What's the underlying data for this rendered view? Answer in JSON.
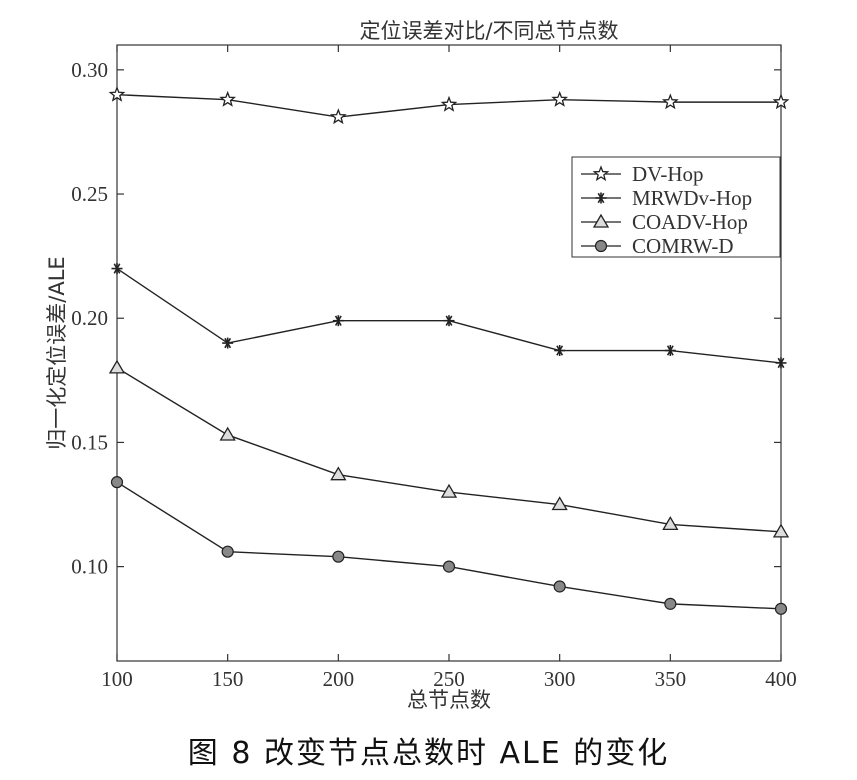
{
  "caption": "图 8   改变节点总数时 ALE 的变化",
  "chart_data": {
    "type": "line",
    "title": "定位误差对比/不同总节点数",
    "xlabel": "总节点数",
    "ylabel": "归一化定位误差/ALE",
    "x": [
      100,
      150,
      200,
      250,
      300,
      350,
      400
    ],
    "xlim": [
      100,
      400
    ],
    "ylim": [
      0.062,
      0.31
    ],
    "xticks": [
      "100",
      "150",
      "200",
      "250",
      "300",
      "350",
      "400"
    ],
    "xtick_values": [
      100,
      150,
      200,
      250,
      300,
      350,
      400
    ],
    "yticks": [
      "0.10",
      "0.15",
      "0.20",
      "0.25",
      "0.30"
    ],
    "ytick_values": [
      0.1,
      0.15,
      0.2,
      0.25,
      0.3
    ],
    "grid": false,
    "legend_position": "top-right",
    "series": [
      {
        "name": "DV-Hop",
        "marker": "star",
        "values": [
          0.29,
          0.288,
          0.281,
          0.286,
          0.288,
          0.287,
          0.287
        ]
      },
      {
        "name": "MRWDv-Hop",
        "marker": "asterisk",
        "values": [
          0.22,
          0.19,
          0.199,
          0.199,
          0.187,
          0.187,
          0.182
        ]
      },
      {
        "name": "COADV-Hop",
        "marker": "triangle",
        "values": [
          0.18,
          0.153,
          0.137,
          0.13,
          0.125,
          0.117,
          0.114
        ]
      },
      {
        "name": "COMRW-D",
        "marker": "circle",
        "values": [
          0.134,
          0.106,
          0.104,
          0.1,
          0.092,
          0.085,
          0.083
        ]
      }
    ],
    "colors": {
      "line": "#222222",
      "marker_fill": "#ffffff",
      "circle_fill": "#888888",
      "axis": "#333333"
    }
  }
}
